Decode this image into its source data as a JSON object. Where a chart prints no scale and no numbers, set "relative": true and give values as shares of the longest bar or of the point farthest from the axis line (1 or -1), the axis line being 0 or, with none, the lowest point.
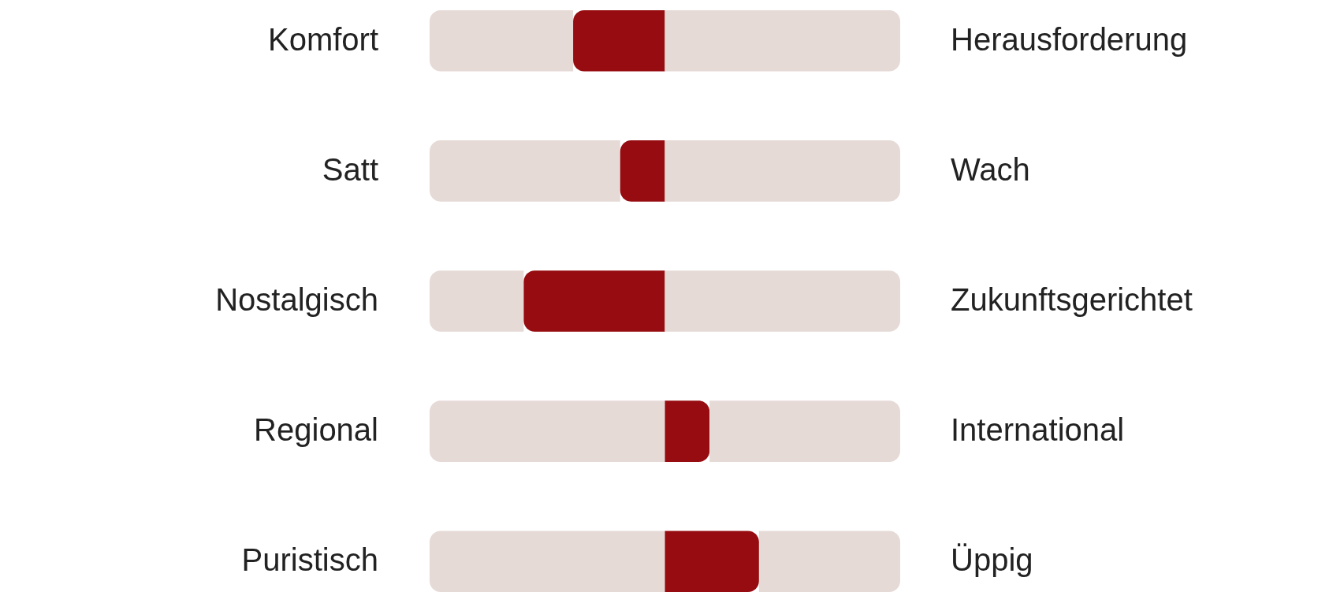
{
  "chart_data": {
    "type": "bar",
    "orientation": "horizontal",
    "relative": true,
    "stacked": true,
    "categories": [
      "Komfort",
      "Satt",
      "Nostalgisch",
      "Regional",
      "Puristisch"
    ],
    "series": [
      {
        "color": "#e6dad7",
        "values": [
          0.305,
          0.405,
          0.2,
          0.5,
          0.5
        ]
      },
      {
        "color": "#960c10",
        "values": [
          0.195,
          0.095,
          0.3,
          0.095,
          0.2
        ]
      },
      {
        "color": "#e6dad7",
        "values": [
          0.5,
          0.5,
          0.5,
          0.405,
          0.3
        ]
      }
    ],
    "annotations": [
      "Herausforderung",
      "Wach",
      "Zukunftsgerichtet",
      "International",
      "Üppig"
    ]
  }
}
